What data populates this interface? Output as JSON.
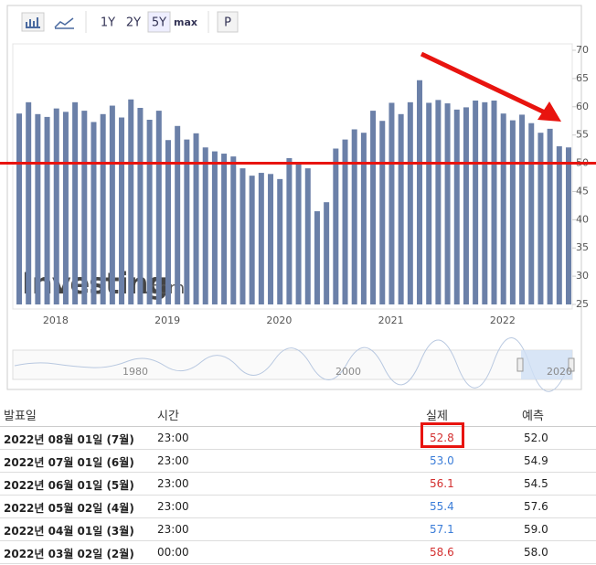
{
  "toolbar": {
    "ranges": [
      "1Y",
      "2Y",
      "5Y",
      "max"
    ],
    "active_range": 2,
    "print": "P"
  },
  "chart_data": {
    "type": "bar",
    "color": "#6b80a8",
    "categories": [
      null,
      null,
      null,
      null,
      null,
      "2018",
      null,
      null,
      null,
      null,
      null,
      null,
      null,
      null,
      null,
      null,
      null,
      "2019",
      null,
      null,
      null,
      null,
      null,
      null,
      null,
      null,
      null,
      null,
      null,
      "2020",
      null,
      null,
      null,
      null,
      null,
      null,
      null,
      null,
      null,
      null,
      null,
      "2021",
      null,
      null,
      null,
      null,
      null,
      null,
      null,
      null,
      null,
      null,
      null,
      "2022",
      null,
      null,
      null,
      null,
      null,
      null
    ],
    "values": [
      58.8,
      60.8,
      58.7,
      58.2,
      59.7,
      59.1,
      60.8,
      59.3,
      57.3,
      58.7,
      60.2,
      58.1,
      61.3,
      59.8,
      57.7,
      59.3,
      54.1,
      56.6,
      54.2,
      55.3,
      52.8,
      52.1,
      51.7,
      51.2,
      49.1,
      47.8,
      48.3,
      48.1,
      47.2,
      50.9,
      50.1,
      49.1,
      41.5,
      43.1,
      52.6,
      54.2,
      56.0,
      55.4,
      59.3,
      57.5,
      60.7,
      58.7,
      60.8,
      64.7,
      60.7,
      61.2,
      60.6,
      59.5,
      59.9,
      61.1,
      60.8,
      61.1,
      58.8,
      57.6,
      58.6,
      57.1,
      55.4,
      56.1,
      53.0,
      52.8
    ],
    "ylim": [
      25,
      70
    ],
    "yticks": [
      25,
      30,
      35,
      40,
      45,
      50,
      55,
      60,
      65,
      70
    ],
    "reference_line": 50,
    "reference_color": "#e8140f",
    "watermark": [
      "Investing",
      ".com"
    ],
    "navigator_labels": [
      "1980",
      "2000",
      "2020"
    ]
  },
  "table": {
    "headers": [
      "발표일",
      "시간",
      "실제",
      "예측"
    ],
    "rows": [
      {
        "date": "2022년 08월 01일 (7월)",
        "time": "23:00",
        "actual": "52.8",
        "forecast": "52.0",
        "actual_color": "#d32f2f"
      },
      {
        "date": "2022년 07월 01일 (6월)",
        "time": "23:00",
        "actual": "53.0",
        "forecast": "54.9",
        "actual_color": "#3b7dd8"
      },
      {
        "date": "2022년 06월 01일 (5월)",
        "time": "23:00",
        "actual": "56.1",
        "forecast": "54.5",
        "actual_color": "#d32f2f"
      },
      {
        "date": "2022년 05월 02일 (4월)",
        "time": "23:00",
        "actual": "55.4",
        "forecast": "57.6",
        "actual_color": "#3b7dd8"
      },
      {
        "date": "2022년 04월 01일 (3월)",
        "time": "23:00",
        "actual": "57.1",
        "forecast": "59.0",
        "actual_color": "#3b7dd8"
      },
      {
        "date": "2022년 03월 02일 (2월)",
        "time": "00:00",
        "actual": "58.6",
        "forecast": "58.0",
        "actual_color": "#d32f2f"
      }
    ]
  }
}
